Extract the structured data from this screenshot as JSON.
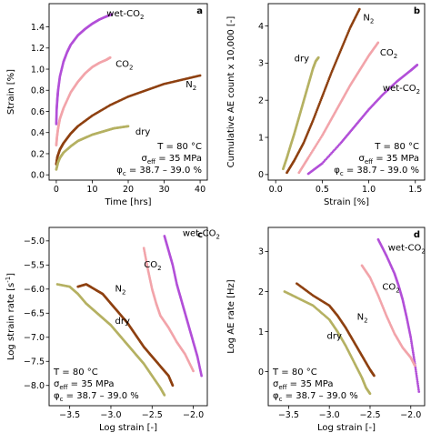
{
  "colors": {
    "wet_co2": "#b24fd8",
    "co2": "#f2a4aa",
    "n2": "#8e4010",
    "dry": "#b5b162"
  },
  "annotation_lines": [
    "T = 80 °C",
    "σ_eff = 35 MPa",
    "φ_c = 38.7 – 39.0 %"
  ],
  "chart_data": [
    {
      "panel": "a",
      "type": "scatter",
      "xlabel": "Time [hrs]",
      "ylabel": "Strain [%]",
      "xlim": [
        -2,
        42
      ],
      "ylim": [
        -0.05,
        1.62
      ],
      "xticks": [
        0,
        10,
        20,
        30,
        40
      ],
      "yticks": [
        0.0,
        0.2,
        0.4,
        0.6,
        0.8,
        1.0,
        1.2,
        1.4
      ],
      "yticks_format": 1,
      "annotation_corner": "bottom-right",
      "series": [
        {
          "key": "wet_co2",
          "label_lines": [
            "wet-CO",
            "2"
          ],
          "label_pos": [
            14,
            1.5
          ],
          "x": [
            0,
            0.1,
            0.3,
            0.5,
            1,
            2,
            3,
            4,
            6,
            8,
            10,
            12,
            14,
            15.5
          ],
          "y": [
            0.48,
            0.62,
            0.72,
            0.8,
            0.93,
            1.07,
            1.16,
            1.23,
            1.32,
            1.38,
            1.43,
            1.47,
            1.5,
            1.52
          ]
        },
        {
          "key": "co2",
          "label_lines": [
            "CO",
            "2"
          ],
          "label_pos": [
            16.5,
            1.02
          ],
          "x": [
            0,
            0.2,
            0.5,
            1,
            2,
            4,
            6,
            8,
            10,
            12,
            14,
            15
          ],
          "y": [
            0.28,
            0.36,
            0.44,
            0.53,
            0.63,
            0.78,
            0.88,
            0.96,
            1.02,
            1.06,
            1.09,
            1.11
          ]
        },
        {
          "key": "n2",
          "label_lines": [
            "N",
            "2"
          ],
          "label_pos": [
            36,
            0.83
          ],
          "x": [
            0,
            0.3,
            1,
            2,
            4,
            6,
            10,
            15,
            20,
            25,
            30,
            35,
            40
          ],
          "y": [
            0.1,
            0.17,
            0.24,
            0.3,
            0.39,
            0.46,
            0.56,
            0.66,
            0.74,
            0.8,
            0.86,
            0.9,
            0.94
          ]
        },
        {
          "key": "dry",
          "label_lines": [
            "dry"
          ],
          "label_pos": [
            22,
            0.38
          ],
          "x": [
            0,
            0.5,
            1,
            2,
            4,
            6,
            8,
            10,
            12,
            14,
            16,
            18,
            20
          ],
          "y": [
            0.05,
            0.12,
            0.16,
            0.21,
            0.27,
            0.32,
            0.35,
            0.38,
            0.4,
            0.42,
            0.44,
            0.45,
            0.46
          ]
        }
      ]
    },
    {
      "panel": "b",
      "type": "scatter",
      "xlabel": "Strain [%]",
      "ylabel": "Cumulative AE count x 10,000 [-]",
      "xlim": [
        -0.08,
        1.6
      ],
      "ylim": [
        -0.15,
        4.6
      ],
      "xticks": [
        0.0,
        0.5,
        1.0,
        1.5
      ],
      "yticks": [
        0,
        1,
        2,
        3,
        4
      ],
      "xticks_format": 1,
      "annotation_corner": "bottom-right",
      "series": [
        {
          "key": "dry",
          "label_lines": [
            "dry"
          ],
          "label_pos": [
            0.2,
            3.05
          ],
          "x": [
            0.08,
            0.12,
            0.16,
            0.2,
            0.24,
            0.28,
            0.32,
            0.36,
            0.4,
            0.43,
            0.46
          ],
          "y": [
            0.15,
            0.45,
            0.78,
            1.1,
            1.45,
            1.8,
            2.15,
            2.5,
            2.85,
            3.05,
            3.15
          ]
        },
        {
          "key": "n2",
          "label_lines": [
            "N",
            "2"
          ],
          "label_pos": [
            0.94,
            4.15
          ],
          "x": [
            0.12,
            0.2,
            0.3,
            0.4,
            0.5,
            0.6,
            0.7,
            0.8,
            0.9
          ],
          "y": [
            0.05,
            0.38,
            0.85,
            1.45,
            2.1,
            2.75,
            3.35,
            3.95,
            4.45
          ]
        },
        {
          "key": "co2",
          "label_lines": [
            "CO",
            "2"
          ],
          "label_pos": [
            1.12,
            3.2
          ],
          "x": [
            0.25,
            0.35,
            0.5,
            0.6,
            0.7,
            0.8,
            0.9,
            1.0,
            1.1
          ],
          "y": [
            0.05,
            0.45,
            1.05,
            1.5,
            1.95,
            2.4,
            2.8,
            3.2,
            3.55
          ]
        },
        {
          "key": "wet_co2",
          "label_lines": [
            "wet-CO",
            "2"
          ],
          "label_pos": [
            1.15,
            2.25
          ],
          "x": [
            0.35,
            0.5,
            0.7,
            0.85,
            1.0,
            1.15,
            1.3,
            1.45,
            1.52
          ],
          "y": [
            0.02,
            0.3,
            0.85,
            1.3,
            1.75,
            2.15,
            2.5,
            2.8,
            2.95
          ]
        }
      ]
    },
    {
      "panel": "c",
      "type": "scatter",
      "xlabel": "Log strain [-]",
      "ylabel": "Log strain rate [s",
      "ylabel_sup": "-1",
      "ylabel_end": "]",
      "xlim": [
        -3.75,
        -1.83
      ],
      "ylim": [
        -8.42,
        -4.72
      ],
      "xticks": [
        -3.5,
        -3.0,
        -2.5,
        -2.0
      ],
      "yticks": [
        -5.0,
        -5.5,
        -6.0,
        -6.5,
        -7.0,
        -7.5,
        -8.0
      ],
      "xticks_format": 1,
      "yticks_format": 1,
      "annotation_corner": "bottom-left",
      "series": [
        {
          "key": "wet_co2",
          "label_lines": [
            "wet-CO",
            "2"
          ],
          "label_pos": [
            -2.13,
            -4.9
          ],
          "x": [
            -2.35,
            -2.3,
            -2.25,
            -2.2,
            -2.15,
            -2.1,
            -2.05,
            -2.0,
            -1.95,
            -1.9
          ],
          "y": [
            -4.9,
            -5.2,
            -5.5,
            -5.9,
            -6.2,
            -6.5,
            -6.8,
            -7.1,
            -7.4,
            -7.8
          ]
        },
        {
          "key": "co2",
          "label_lines": [
            "CO",
            "2"
          ],
          "label_pos": [
            -2.6,
            -5.55
          ],
          "x": [
            -2.6,
            -2.55,
            -2.5,
            -2.45,
            -2.4,
            -2.3,
            -2.2,
            -2.1,
            -2.0
          ],
          "y": [
            -5.15,
            -5.6,
            -6.0,
            -6.3,
            -6.55,
            -6.8,
            -7.1,
            -7.35,
            -7.7
          ]
        },
        {
          "key": "n2",
          "label_lines": [
            "N",
            "2"
          ],
          "label_pos": [
            -2.95,
            -6.05
          ],
          "x": [
            -3.4,
            -3.3,
            -3.2,
            -3.1,
            -3.0,
            -2.9,
            -2.8,
            -2.7,
            -2.6,
            -2.5,
            -2.4,
            -2.3,
            -2.25
          ],
          "y": [
            -5.95,
            -5.9,
            -6.0,
            -6.1,
            -6.3,
            -6.5,
            -6.7,
            -6.95,
            -7.2,
            -7.4,
            -7.6,
            -7.8,
            -8.0
          ]
        },
        {
          "key": "dry",
          "label_lines": [
            "dry"
          ],
          "label_pos": [
            -2.95,
            -6.72
          ],
          "x": [
            -3.65,
            -3.5,
            -3.4,
            -3.3,
            -3.2,
            -3.1,
            -3.0,
            -2.9,
            -2.8,
            -2.7,
            -2.6,
            -2.5,
            -2.4,
            -2.35
          ],
          "y": [
            -5.9,
            -5.95,
            -6.1,
            -6.3,
            -6.45,
            -6.6,
            -6.75,
            -6.95,
            -7.15,
            -7.35,
            -7.55,
            -7.8,
            -8.05,
            -8.2
          ]
        }
      ]
    },
    {
      "panel": "d",
      "type": "scatter",
      "xlabel": "Log strain [-]",
      "ylabel": "Log AE rate [Hz]",
      "xlim": [
        -3.75,
        -1.83
      ],
      "ylim": [
        -0.85,
        3.6
      ],
      "xticks": [
        -3.5,
        -3.0,
        -2.5,
        -2.0
      ],
      "yticks": [
        0,
        1,
        2,
        3
      ],
      "xticks_format": 1,
      "annotation_corner": "bottom-left",
      "series": [
        {
          "key": "wet_co2",
          "label_lines": [
            "wet-CO",
            "2"
          ],
          "label_pos": [
            -2.28,
            3.02
          ],
          "x": [
            -2.4,
            -2.3,
            -2.2,
            -2.15,
            -2.1,
            -2.05,
            -2.0,
            -1.95,
            -1.9
          ],
          "y": [
            3.3,
            2.9,
            2.45,
            2.15,
            1.8,
            1.35,
            0.85,
            0.2,
            -0.5
          ]
        },
        {
          "key": "co2",
          "label_lines": [
            "CO",
            "2"
          ],
          "label_pos": [
            -2.35,
            2.05
          ],
          "x": [
            -2.6,
            -2.5,
            -2.4,
            -2.3,
            -2.2,
            -2.1,
            -2.0,
            -1.95
          ],
          "y": [
            2.65,
            2.35,
            1.9,
            1.4,
            0.95,
            0.6,
            0.35,
            0.15
          ]
        },
        {
          "key": "n2",
          "label_lines": [
            "N",
            "2"
          ],
          "label_pos": [
            -2.66,
            1.3
          ],
          "x": [
            -3.4,
            -3.2,
            -3.0,
            -2.9,
            -2.8,
            -2.7,
            -2.6,
            -2.5,
            -2.45
          ],
          "y": [
            2.2,
            1.9,
            1.65,
            1.4,
            1.1,
            0.75,
            0.4,
            0.05,
            -0.1
          ]
        },
        {
          "key": "dry",
          "label_lines": [
            "dry"
          ],
          "label_pos": [
            -3.03,
            0.82
          ],
          "x": [
            -3.55,
            -3.4,
            -3.2,
            -3.0,
            -2.9,
            -2.8,
            -2.7,
            -2.6,
            -2.55,
            -2.5
          ],
          "y": [
            2.0,
            1.85,
            1.65,
            1.3,
            1.0,
            0.65,
            0.25,
            -0.15,
            -0.4,
            -0.55
          ]
        }
      ]
    }
  ]
}
